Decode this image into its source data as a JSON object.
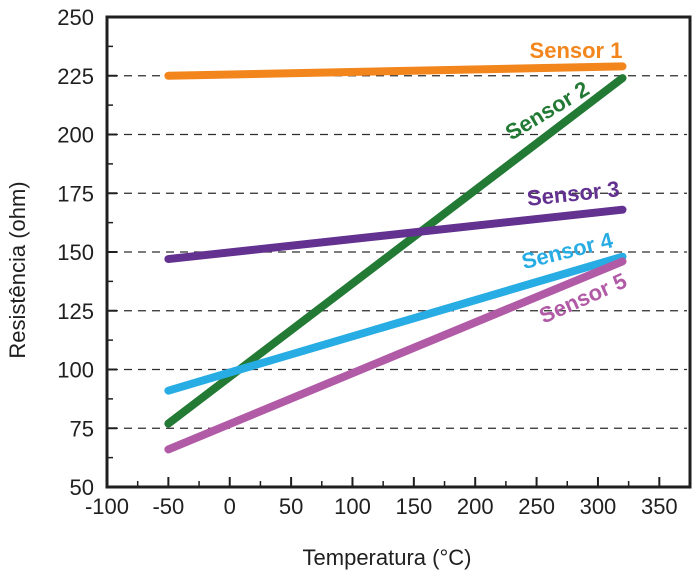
{
  "chart_data": {
    "type": "line",
    "xlabel": "Temperatura (°C)",
    "ylabel": "Resistência (ohm)",
    "xlim": [
      -100,
      375
    ],
    "ylim": [
      50,
      250
    ],
    "x_ticks": [
      -100,
      -50,
      0,
      50,
      100,
      150,
      200,
      250,
      300,
      350
    ],
    "y_ticks": [
      50,
      75,
      100,
      125,
      150,
      175,
      200,
      225,
      250
    ],
    "gridlines": {
      "horizontal": true,
      "vertical": false,
      "style": "dashed",
      "values": [
        75,
        100,
        125,
        150,
        175,
        200,
        225
      ]
    },
    "series": [
      {
        "name": "Sensor 1",
        "color": "#f2861d",
        "x": [
          -50,
          320
        ],
        "y": [
          225,
          229
        ]
      },
      {
        "name": "Sensor 2",
        "color": "#237a35",
        "x": [
          -50,
          320
        ],
        "y": [
          77,
          224
        ]
      },
      {
        "name": "Sensor 3",
        "color": "#63318f",
        "x": [
          -50,
          320
        ],
        "y": [
          147,
          168
        ]
      },
      {
        "name": "Sensor 4",
        "color": "#27ace4",
        "x": [
          -50,
          320
        ],
        "y": [
          91,
          148
        ]
      },
      {
        "name": "Sensor 5",
        "color": "#b15aa6",
        "x": [
          -50,
          320
        ],
        "y": [
          66,
          146
        ]
      }
    ]
  }
}
